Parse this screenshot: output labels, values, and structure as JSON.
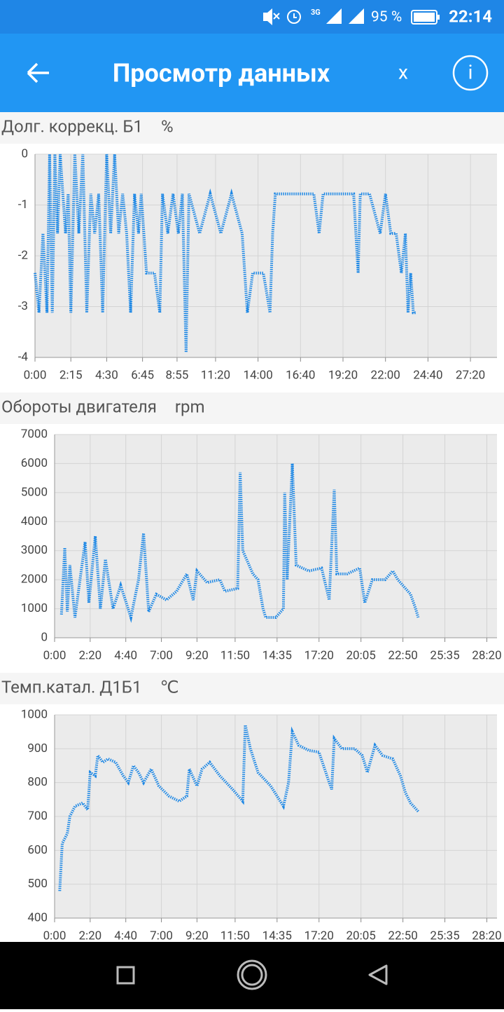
{
  "status_bar": {
    "network": "3G",
    "battery": "95 %",
    "time": "22:14"
  },
  "app_bar": {
    "title": "Просмотр данных",
    "close": "x",
    "info": "i"
  },
  "chart_data": [
    {
      "type": "line",
      "title": "Долг. коррекц. Б1",
      "unit": "%",
      "color": "#1e88e5",
      "grid": true,
      "xlim": [
        0,
        1740
      ],
      "ylim": [
        -4,
        0
      ],
      "yticks": [
        0,
        -1,
        -2,
        -3,
        -4
      ],
      "xticks": [
        {
          "value": 0,
          "label": "0:00"
        },
        {
          "value": 135,
          "label": "2:15"
        },
        {
          "value": 270,
          "label": "4:30"
        },
        {
          "value": 405,
          "label": "6:45"
        },
        {
          "value": 535,
          "label": "8:55"
        },
        {
          "value": 680,
          "label": "11:20"
        },
        {
          "value": 840,
          "label": "14:00"
        },
        {
          "value": 1000,
          "label": "16:40"
        },
        {
          "value": 1160,
          "label": "19:20"
        },
        {
          "value": 1320,
          "label": "22:00"
        },
        {
          "value": 1480,
          "label": "24:40"
        },
        {
          "value": 1640,
          "label": "27:20"
        }
      ],
      "x": [
        0,
        15,
        30,
        45,
        55,
        65,
        75,
        85,
        95,
        105,
        115,
        125,
        135,
        150,
        165,
        180,
        195,
        210,
        225,
        240,
        255,
        270,
        285,
        300,
        315,
        330,
        345,
        360,
        375,
        390,
        400,
        420,
        450,
        470,
        480,
        500,
        520,
        540,
        555,
        569,
        580,
        620,
        660,
        700,
        740,
        780,
        800,
        820,
        860,
        885,
        895,
        905,
        950,
        1000,
        1050,
        1070,
        1085,
        1100,
        1150,
        1200,
        1217,
        1225,
        1260,
        1300,
        1320,
        1340,
        1360,
        1380,
        1395,
        1405,
        1415,
        1425,
        1434
      ],
      "values": [
        -2.34,
        -3.12,
        -1.56,
        -3.12,
        0,
        -3.12,
        0,
        -1.56,
        0,
        -0.78,
        -1.56,
        -0.78,
        -3.12,
        0,
        -1.56,
        0,
        -3.12,
        -0.78,
        -1.56,
        -0.78,
        -3.12,
        0,
        -1.56,
        0,
        -1.56,
        -0.78,
        -1.56,
        -3.12,
        -0.78,
        -1.56,
        -0.78,
        -2.34,
        -2.34,
        -3.12,
        -0.78,
        -1.56,
        -0.78,
        -1.56,
        -0.78,
        -3.9,
        -0.78,
        -1.56,
        -0.78,
        -1.56,
        -0.78,
        -1.56,
        -3.12,
        -2.34,
        -2.34,
        -3.12,
        -1.56,
        -0.78,
        -0.78,
        -0.78,
        -0.78,
        -1.56,
        -0.78,
        -0.78,
        -0.78,
        -0.78,
        -2.34,
        -0.78,
        -0.78,
        -1.56,
        -0.78,
        -1.56,
        -1.56,
        -2.34,
        -1.56,
        -3.12,
        -2.34,
        -3.12,
        -3.12
      ]
    },
    {
      "type": "line",
      "title": "Обороты двигателя",
      "unit": "rpm",
      "color": "#1e88e5",
      "grid": true,
      "xlim": [
        0,
        1740
      ],
      "ylim": [
        0,
        7000
      ],
      "yticks": [
        7000,
        6000,
        5000,
        4000,
        3000,
        2000,
        1000,
        0
      ],
      "xticks": [
        {
          "value": 0,
          "label": "0:00"
        },
        {
          "value": 140,
          "label": "2:20"
        },
        {
          "value": 280,
          "label": "4:40"
        },
        {
          "value": 420,
          "label": "7:00"
        },
        {
          "value": 560,
          "label": "9:20"
        },
        {
          "value": 710,
          "label": "11:50"
        },
        {
          "value": 875,
          "label": "14:35"
        },
        {
          "value": 1040,
          "label": "17:20"
        },
        {
          "value": 1205,
          "label": "20:05"
        },
        {
          "value": 1370,
          "label": "22:50"
        },
        {
          "value": 1535,
          "label": "25:35"
        },
        {
          "value": 1700,
          "label": "28:20"
        }
      ],
      "x": [
        27,
        40,
        50,
        60,
        80,
        100,
        120,
        135,
        160,
        180,
        200,
        230,
        260,
        300,
        330,
        350,
        370,
        400,
        440,
        480,
        520,
        545,
        560,
        600,
        650,
        670,
        720,
        730,
        740,
        780,
        800,
        820,
        830,
        870,
        900,
        905,
        915,
        935,
        950,
        1000,
        1050,
        1080,
        1100,
        1110,
        1150,
        1200,
        1220,
        1250,
        1300,
        1330,
        1350,
        1400,
        1420,
        1430
      ],
      "values": [
        800,
        3100,
        900,
        2500,
        700,
        2000,
        3300,
        1200,
        3500,
        1000,
        2700,
        1000,
        1800,
        700,
        2000,
        3600,
        900,
        1500,
        1300,
        1600,
        2200,
        1300,
        2300,
        1900,
        2000,
        1600,
        1700,
        5700,
        3000,
        2200,
        2000,
        1000,
        700,
        700,
        1000,
        5000,
        2000,
        6000,
        2500,
        2300,
        2400,
        1300,
        5100,
        2200,
        2200,
        2400,
        1200,
        2000,
        2000,
        2300,
        2000,
        1500,
        1000,
        700
      ]
    },
    {
      "type": "line",
      "title": "Темп.катал. Д1Б1",
      "unit": "℃",
      "color": "#1e88e5",
      "grid": true,
      "xlim": [
        0,
        1740
      ],
      "ylim": [
        400,
        1000
      ],
      "yticks": [
        1000,
        900,
        800,
        700,
        600,
        500,
        400
      ],
      "xticks": [
        {
          "value": 0,
          "label": "0:00"
        },
        {
          "value": 140,
          "label": "2:20"
        },
        {
          "value": 280,
          "label": "4:40"
        },
        {
          "value": 420,
          "label": "7:00"
        },
        {
          "value": 560,
          "label": "9:20"
        },
        {
          "value": 710,
          "label": "11:50"
        },
        {
          "value": 875,
          "label": "14:35"
        },
        {
          "value": 1040,
          "label": "17:20"
        },
        {
          "value": 1205,
          "label": "20:05"
        },
        {
          "value": 1370,
          "label": "22:50"
        },
        {
          "value": 1535,
          "label": "25:35"
        },
        {
          "value": 1700,
          "label": "28:20"
        }
      ],
      "x": [
        20,
        30,
        50,
        60,
        80,
        110,
        130,
        140,
        160,
        170,
        190,
        210,
        240,
        270,
        290,
        310,
        330,
        350,
        380,
        410,
        450,
        490,
        520,
        530,
        560,
        580,
        610,
        650,
        700,
        740,
        750,
        770,
        800,
        850,
        900,
        920,
        935,
        960,
        1000,
        1040,
        1080,
        1090,
        1100,
        1130,
        1180,
        1210,
        1230,
        1260,
        1290,
        1330,
        1360,
        1380,
        1400,
        1430
      ],
      "values": [
        480,
        620,
        650,
        700,
        730,
        740,
        720,
        830,
        820,
        880,
        860,
        870,
        860,
        820,
        800,
        850,
        830,
        800,
        840,
        790,
        760,
        745,
        760,
        840,
        790,
        840,
        860,
        820,
        780,
        745,
        970,
        900,
        830,
        790,
        730,
        800,
        950,
        910,
        895,
        890,
        800,
        780,
        930,
        900,
        900,
        880,
        830,
        910,
        880,
        870,
        820,
        770,
        740,
        715
      ]
    }
  ]
}
